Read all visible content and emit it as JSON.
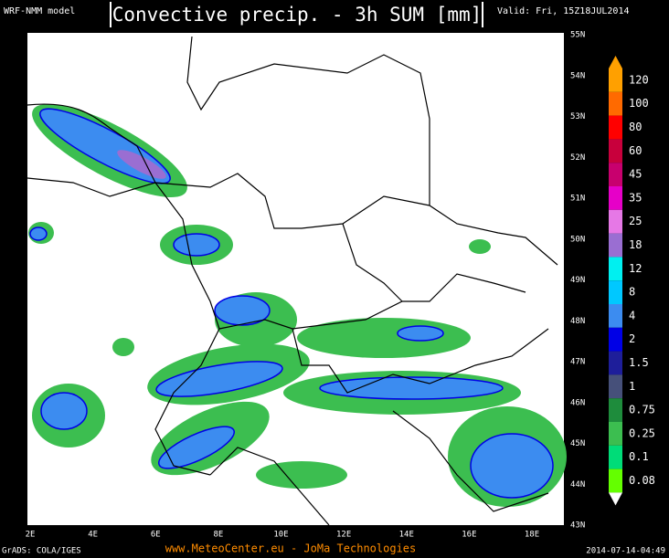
{
  "header": {
    "model": "WRF-NMM model",
    "title": "Convective precip. - 3h SUM [mm]",
    "valid": "Valid: Fri, 15Z18JUL2014"
  },
  "map": {
    "latitude_labels": [
      "55N",
      "54N",
      "53N",
      "52N",
      "51N",
      "50N",
      "49N",
      "48N",
      "47N",
      "46N",
      "45N",
      "44N",
      "43N"
    ],
    "longitude_labels": [
      "2E",
      "4E",
      "6E",
      "8E",
      "10E",
      "12E",
      "14E",
      "16E",
      "18E"
    ]
  },
  "legend": {
    "levels": [
      {
        "label": "120",
        "color": "#ffa000"
      },
      {
        "label": "100",
        "color": "#ff6a00"
      },
      {
        "label": "80",
        "color": "#ff0000"
      },
      {
        "label": "60",
        "color": "#c8003c"
      },
      {
        "label": "45",
        "color": "#c8006e"
      },
      {
        "label": "35",
        "color": "#e600c8"
      },
      {
        "label": "25",
        "color": "#e678e6"
      },
      {
        "label": "18",
        "color": "#9a6ed2"
      },
      {
        "label": "12",
        "color": "#00f0f0"
      },
      {
        "label": "8",
        "color": "#00c8ff"
      },
      {
        "label": "4",
        "color": "#3c8cf0"
      },
      {
        "label": "2",
        "color": "#0000e6"
      },
      {
        "label": "1.5",
        "color": "#1e1e9a"
      },
      {
        "label": "1",
        "color": "#46507a"
      },
      {
        "label": "0.75",
        "color": "#1e8c3c"
      },
      {
        "label": "0.25",
        "color": "#3cbe50"
      },
      {
        "label": "0.1",
        "color": "#00dc78"
      },
      {
        "label": "0.08",
        "color": "#64ff00"
      }
    ]
  },
  "footer": {
    "software": "GrADS: COLA/IGES",
    "credit": "www.MeteoCenter.eu  -  JoMa Technologies",
    "timestamp": "2014-07-14-04:49"
  }
}
